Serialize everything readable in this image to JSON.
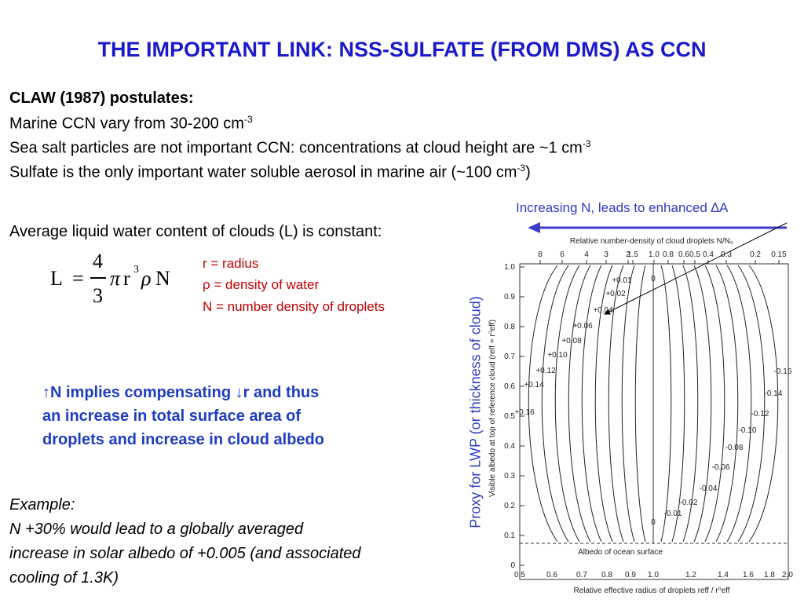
{
  "title": "THE IMPORTANT LINK: NSS-SULFATE (FROM DMS) AS CCN",
  "postulates": {
    "heading": "CLAW (1987) postulates:",
    "lines": [
      {
        "text": "Marine CCN vary from 30-200 cm",
        "sup": "-3"
      },
      {
        "text": "Sea salt particles are not important CCN: concentrations at cloud height are ~1 cm",
        "sup": "-3"
      },
      {
        "text": "Sulfate is the only important water soluble aerosol in marine air (~100 cm",
        "sup": "-3",
        "after": ")"
      }
    ]
  },
  "lwc": "Average liquid water content of clouds (L) is constant:",
  "equation": {
    "lhs": "L",
    "eq": "=",
    "num": "4",
    "den": "3",
    "pi": "π",
    "r": "r",
    "exp": "3",
    "rho": "ρ",
    "n": "N"
  },
  "definitions": [
    "r = radius",
    "ρ = density of water",
    "N = number density of droplets"
  ],
  "implication": [
    "↑N implies compensating ↓r and thus",
    "an increase in total surface area of",
    "droplets and increase in cloud albedo"
  ],
  "example": {
    "heading": "Example:",
    "lines": [
      "N +30% would lead to a globally averaged",
      "increase in solar albedo of +0.005 (and associated",
      "cooling of 1.3K)"
    ]
  },
  "annotation": "Increasing N, leads to enhanced ∆A",
  "side_label": "Proxy for LWP (or thickness of cloud)",
  "figure": {
    "top_axis_label": "Relative number-density of cloud droplets N/N₀",
    "top_ticks": [
      "8",
      "6",
      "4",
      "3",
      "2",
      "1.5",
      "1.0",
      "0.8",
      "0.6",
      "0.5",
      "0.4",
      "0.3",
      "0.2",
      "0.15"
    ],
    "y_axis_label": "Visible albedo at top of reference cloud (reff = r⁰eff)",
    "y_ticks": [
      "1.0",
      "0.9",
      "0.8",
      "0.7",
      "0.6",
      "0.5",
      "0.4",
      "0.3",
      "0.2",
      "0.1",
      "0"
    ],
    "x_ticks": [
      "0.5",
      "0.6",
      "0.7",
      "0.8",
      "0.9",
      "1.0",
      "1.2",
      "1.4",
      "1.6",
      "1.8",
      "2.0"
    ],
    "x_axis_label": "Relative effective radius of droplets  reff / r⁰eff",
    "surface_note": "Albedo of ocean surface",
    "positive_labels": [
      "+0.01",
      "+0.02",
      "+0.04",
      "+0.06",
      "+0.08",
      "+0.10",
      "+0.12",
      "+0.14",
      "+0.16"
    ],
    "negative_labels": [
      "-0.16",
      "-0.14",
      "-0.12",
      "-0.10",
      "-0.08",
      "-0.06",
      "-0.04",
      "-0.02",
      "-0.01"
    ],
    "zero_labels": [
      "0",
      "0"
    ]
  }
}
